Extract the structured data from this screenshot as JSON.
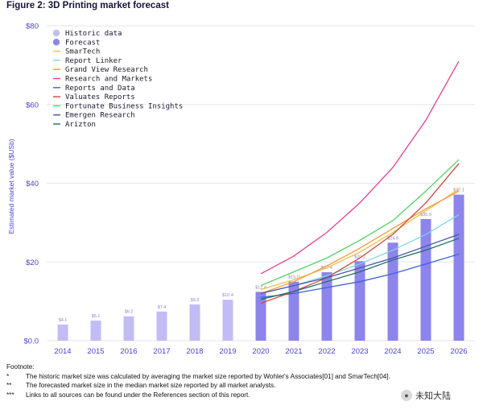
{
  "figure_title": "Figure 2: 3D Printing market forecast",
  "chart_data": {
    "type": "bar",
    "title": "Figure 2: 3D Printing market forecast",
    "xlabel": "",
    "ylabel": "Estimated market value ($USb)",
    "ylim": [
      0,
      80
    ],
    "yticks": [
      "$0.0",
      "$20",
      "$40",
      "$60",
      "$80"
    ],
    "ytick_values": [
      0,
      20,
      40,
      60,
      80
    ],
    "grid": true,
    "legend_position": "top-left",
    "categories": [
      "2014",
      "2015",
      "2016",
      "2017",
      "2018",
      "2019",
      "2020",
      "2021",
      "2022",
      "2023",
      "2024",
      "2025",
      "2026"
    ],
    "bar_series": [
      {
        "name": "Historic data",
        "color": "#c2bcf5",
        "values": [
          4.1,
          5.1,
          6.2,
          7.4,
          9.2,
          10.4,
          null,
          null,
          null,
          null,
          null,
          null,
          null
        ]
      },
      {
        "name": "Forecast",
        "color": "#8d84ec",
        "values": [
          null,
          null,
          null,
          null,
          null,
          null,
          12.4,
          15.0,
          17.4,
          20.2,
          24.9,
          30.9,
          37.1
        ]
      }
    ],
    "bar_labels": [
      "$4.1",
      "$5.1",
      "$6.2",
      "$7.4",
      "$9.2",
      "$10.4",
      "$12.4",
      "$15.0",
      "$17.4",
      "$20.2",
      "$24.9",
      "$30.9",
      "$37.1"
    ],
    "line_series": [
      {
        "name": "SmarTech",
        "color": "#f0c04a",
        "x": [
          "2020",
          "2021",
          "2022",
          "2023",
          "2024",
          "2025",
          "2026"
        ],
        "values": [
          13.0,
          15.5,
          18.5,
          22.5,
          27.5,
          33.0,
          38.5
        ]
      },
      {
        "name": "Report Linker",
        "color": "#7fd6e0",
        "x": [
          "2020",
          "2021",
          "2022",
          "2023",
          "2024",
          "2025",
          "2026"
        ],
        "values": [
          12.0,
          14.0,
          16.5,
          19.5,
          23.0,
          27.0,
          32.0
        ]
      },
      {
        "name": "Grand View Research",
        "color": "#f39a3e",
        "x": [
          "2020",
          "2021",
          "2022",
          "2023",
          "2024",
          "2025",
          "2026"
        ],
        "values": [
          12.0,
          15.0,
          19.0,
          23.5,
          28.5,
          33.5,
          38.0
        ]
      },
      {
        "name": "Research and Markets",
        "color": "#e0428f",
        "x": [
          "2020",
          "2021",
          "2022",
          "2023",
          "2024",
          "2025",
          "2026"
        ],
        "values": [
          17.0,
          21.5,
          27.5,
          35.0,
          44.0,
          56.0,
          71.0
        ]
      },
      {
        "name": "Reports and Data",
        "color": "#3d63d9",
        "x": [
          "2020",
          "2021",
          "2022",
          "2023",
          "2024",
          "2025",
          "2026"
        ],
        "values": [
          11.0,
          12.0,
          13.5,
          15.0,
          17.0,
          19.5,
          22.0
        ]
      },
      {
        "name": "Valuates Reports",
        "color": "#c84a3c",
        "x": [
          "2020",
          "2021",
          "2022",
          "2023",
          "2024",
          "2025",
          "2026"
        ],
        "values": [
          9.5,
          12.5,
          16.0,
          21.0,
          27.0,
          35.0,
          45.0
        ]
      },
      {
        "name": "Fortunate Business Insights",
        "color": "#55d16a",
        "x": [
          "2020",
          "2021",
          "2022",
          "2023",
          "2024",
          "2025",
          "2026"
        ],
        "values": [
          14.0,
          17.5,
          21.0,
          25.5,
          30.5,
          38.0,
          46.0
        ]
      },
      {
        "name": "Emergen Research",
        "color": "#4a55a8",
        "x": [
          "2020",
          "2021",
          "2022",
          "2023",
          "2024",
          "2025",
          "2026"
        ],
        "values": [
          12.0,
          14.0,
          16.0,
          18.5,
          21.0,
          24.0,
          27.0
        ]
      },
      {
        "name": "Arizton",
        "color": "#1f6f5f",
        "x": [
          "2020",
          "2021",
          "2022",
          "2023",
          "2024",
          "2025",
          "2026"
        ],
        "values": [
          10.5,
          12.5,
          15.0,
          17.5,
          20.5,
          23.0,
          26.0
        ]
      }
    ]
  },
  "footnote": {
    "heading": "Footnote:",
    "notes": [
      {
        "mark": "*",
        "text": "The historic market size was calculated by averaging the market size reported by Wohler's Associates[01] and SmarTech[04]."
      },
      {
        "mark": "**",
        "text": "The forecasted market size in the median market size reported by all market analysts."
      },
      {
        "mark": "***",
        "text": "Links to all sources can be found under the References section of this report."
      }
    ]
  },
  "watermark": {
    "icon": "wechat-icon",
    "text": "未知大陆"
  },
  "colors": {
    "axis": "#4b44c9",
    "grid": "#e6e6ee"
  }
}
